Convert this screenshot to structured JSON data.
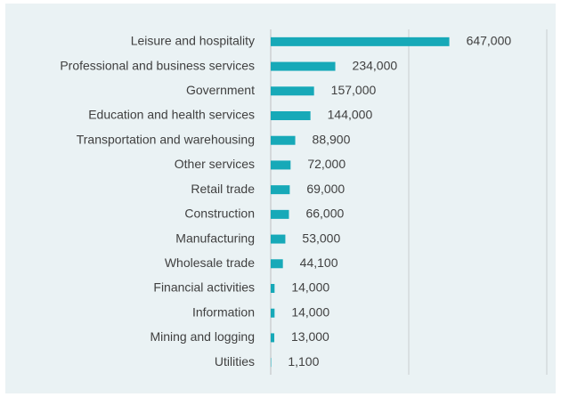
{
  "chart_data": {
    "type": "bar",
    "orientation": "horizontal",
    "categories": [
      "Leisure and hospitality",
      "Professional and business services",
      "Government",
      "Education and health services",
      "Transportation and warehousing",
      "Other services",
      "Retail trade",
      "Construction",
      "Manufacturing",
      "Wholesale trade",
      "Financial activities",
      "Information",
      "Mining and logging",
      "Utilities"
    ],
    "values": [
      647000,
      234000,
      157000,
      144000,
      88900,
      72000,
      69000,
      66000,
      53000,
      44100,
      14000,
      14000,
      13000,
      1100
    ],
    "value_labels": [
      "647,000",
      "234,000",
      "157,000",
      "144,000",
      "88,900",
      "72,000",
      "69,000",
      "66,000",
      "53,000",
      "44,100",
      "14,000",
      "14,000",
      "13,000",
      "1,100"
    ],
    "color": "#17a9b8",
    "xlim": [
      0,
      1000000
    ],
    "xticks": [
      0,
      500000,
      1000000
    ],
    "grid": true
  }
}
